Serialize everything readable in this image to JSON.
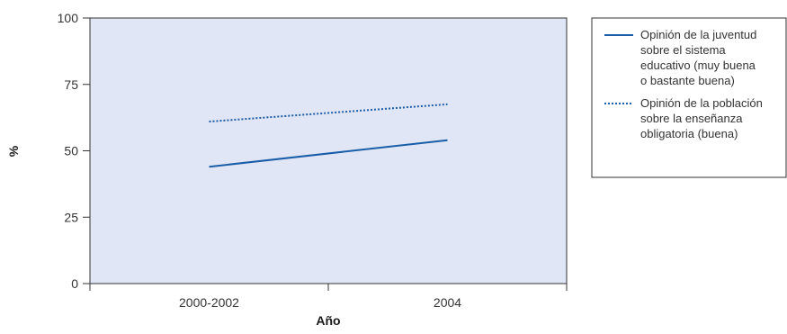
{
  "chart_data": {
    "type": "line",
    "title": "",
    "xlabel": "Año",
    "ylabel": "%",
    "categories": [
      "2000-2002",
      "2004"
    ],
    "ylim": [
      0,
      100
    ],
    "yticks": [
      0,
      25,
      50,
      75,
      100
    ],
    "grid": false,
    "legend_position": "right",
    "plot_background": "#e0e6f5",
    "series": [
      {
        "name": "Opinión de la juventud sobre el sistema educativo (muy buena o bastante buena)",
        "legend_lines": [
          "Opinión de la juventud",
          "sobre el sistema",
          "educativo (muy buena",
          "o bastante buena)"
        ],
        "values": [
          44,
          54
        ],
        "style": "solid",
        "color": "#1b5ea8"
      },
      {
        "name": "Opinión de la población sobre la enseñanza obligatoria (buena)",
        "legend_lines": [
          "Opinión de la población",
          "sobre la enseñanza",
          "obligatoria (buena)"
        ],
        "values": [
          61,
          67.5
        ],
        "style": "dotted",
        "color": "#1b5ea8"
      }
    ]
  }
}
